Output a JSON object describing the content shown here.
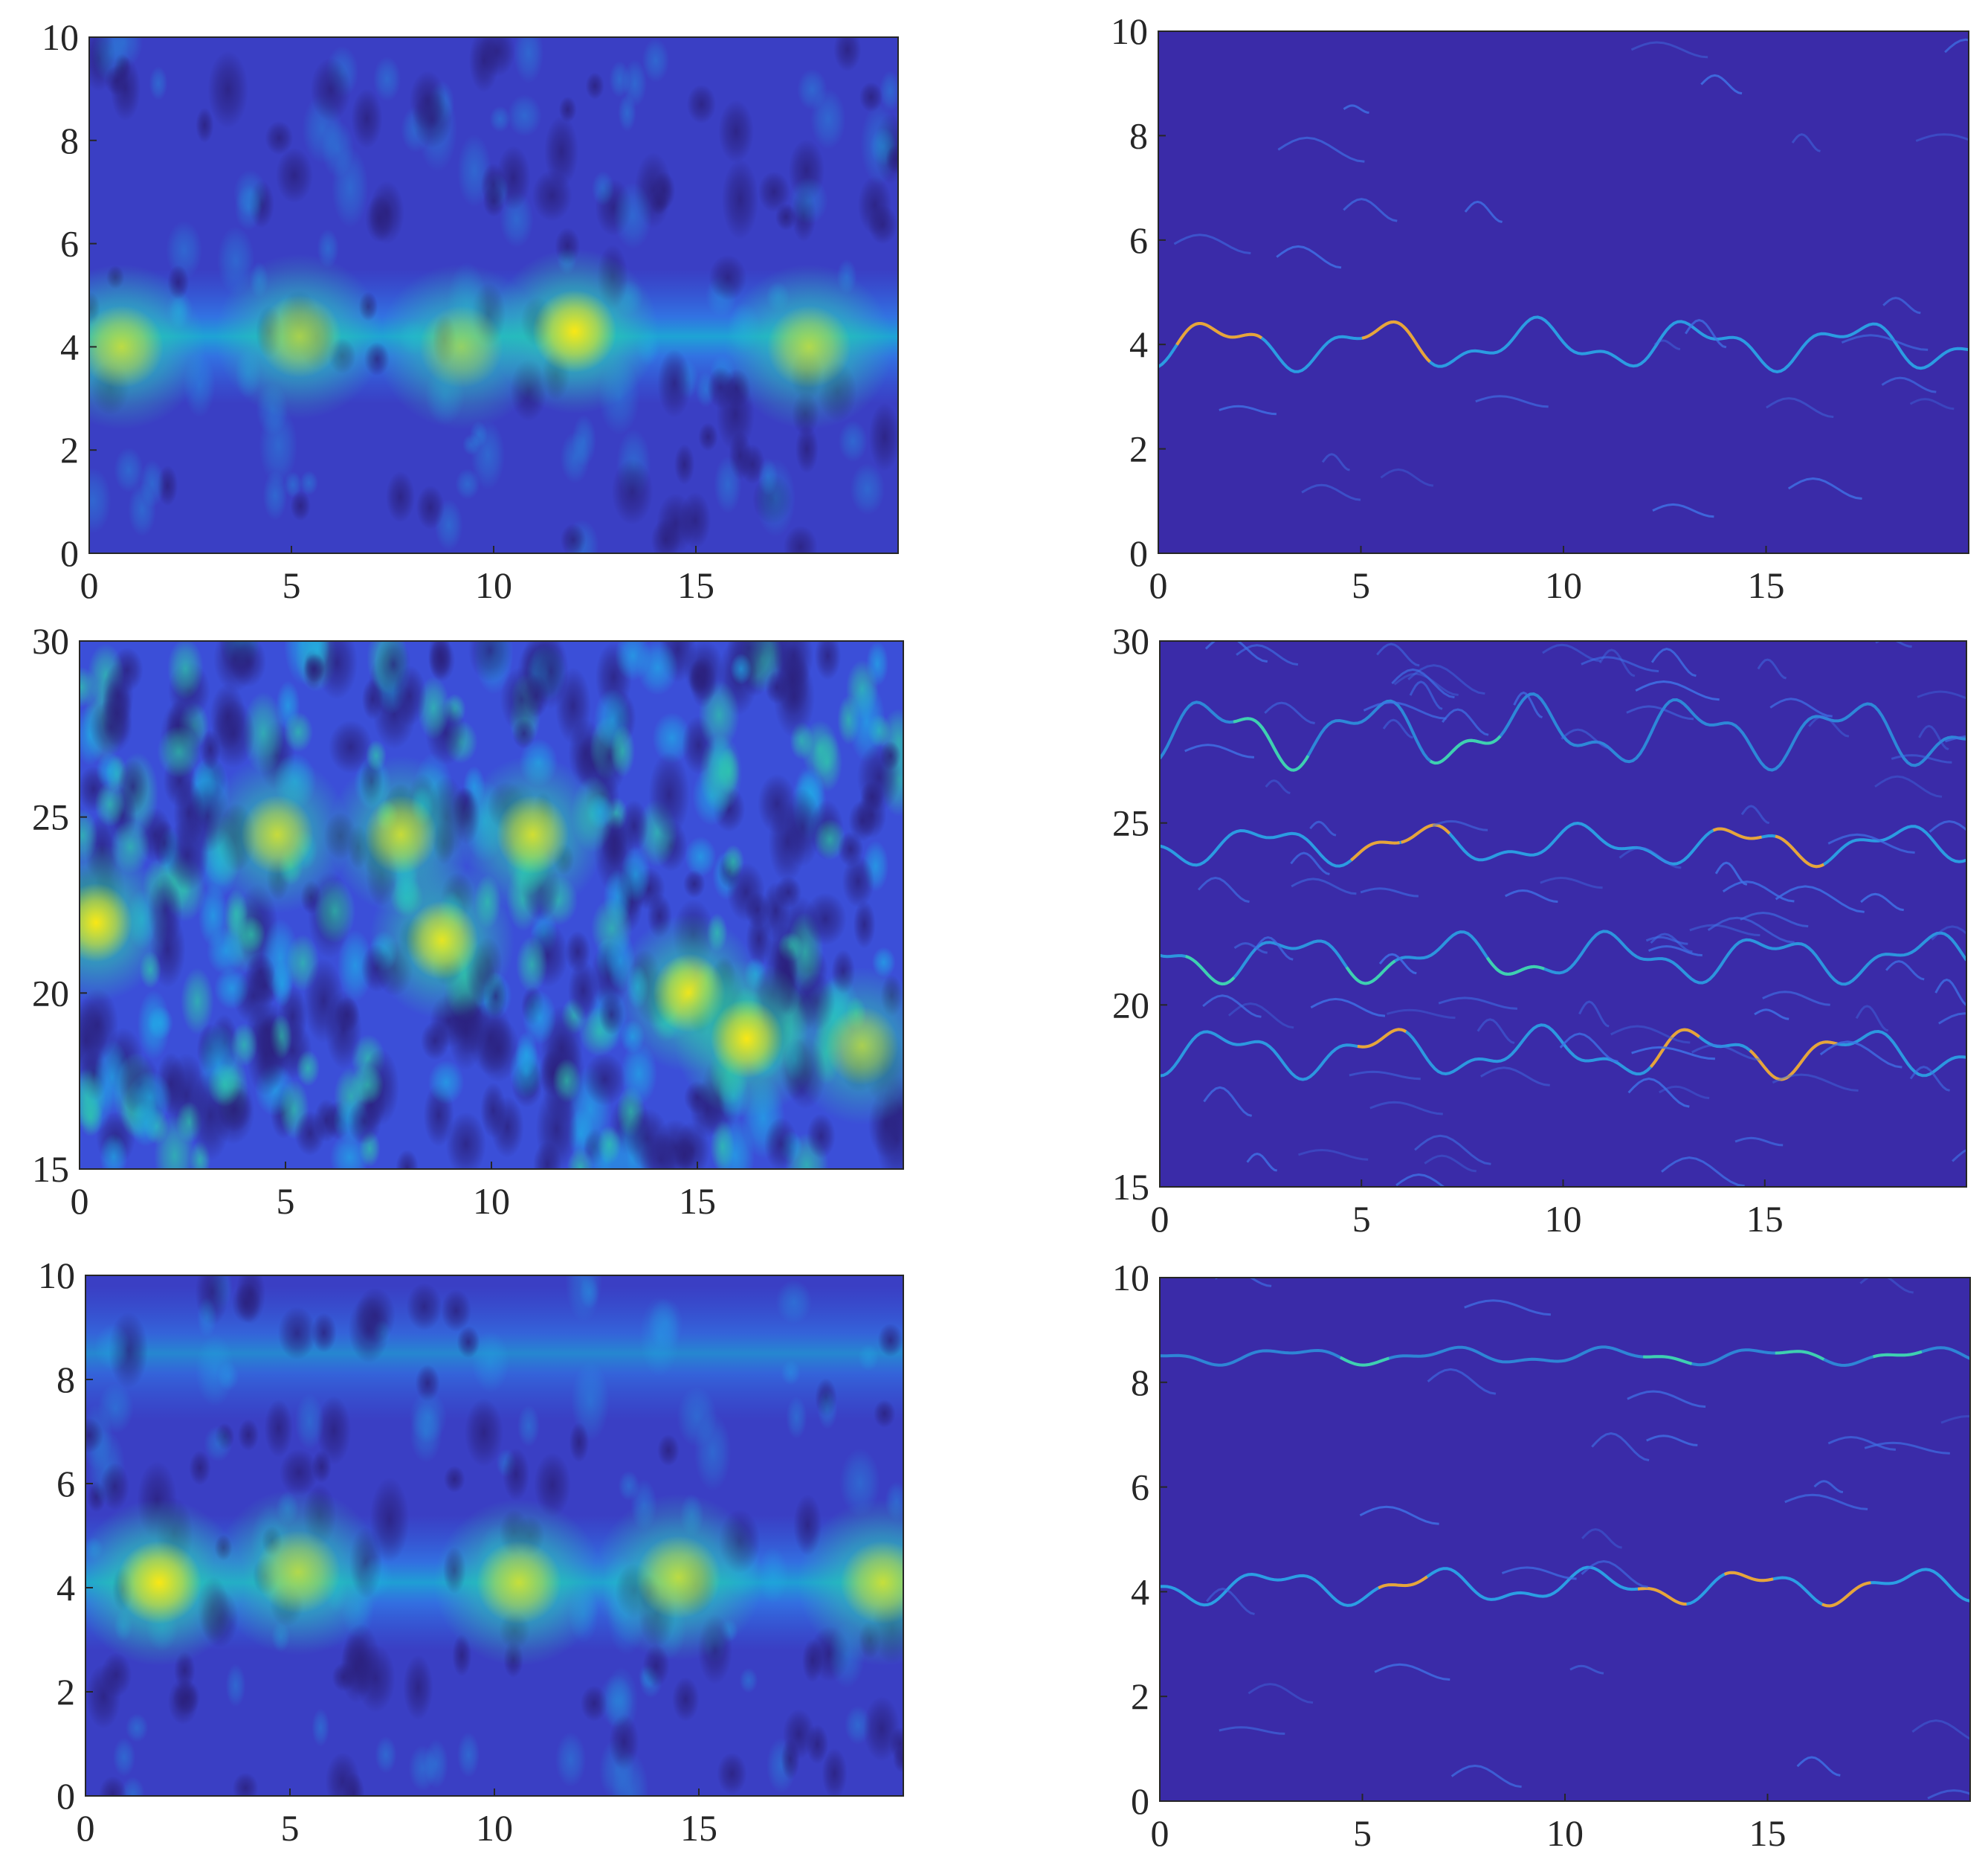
{
  "chart_data": [
    {
      "id": "top-left",
      "type": "heatmap",
      "title": "",
      "xlabel": "",
      "ylabel": "",
      "xlim": [
        0,
        20
      ],
      "ylim": [
        0,
        10
      ],
      "xticks": [
        "0",
        "5",
        "10",
        "15"
      ],
      "yticks": [
        "0",
        "2",
        "4",
        "6",
        "8",
        "10"
      ],
      "colormap": [
        "#352a87",
        "#3c4bd6",
        "#2e86f0",
        "#13b1d6",
        "#32c7a1",
        "#a7c753",
        "#f6c035",
        "#f9e715"
      ],
      "bands": [
        {
          "y": 4.2,
          "intensity": 0.55
        }
      ],
      "hotspots": [
        {
          "x": 0.8,
          "y": 4.0,
          "intensity": 0.7
        },
        {
          "x": 5.2,
          "y": 4.2,
          "intensity": 0.6
        },
        {
          "x": 9.2,
          "y": 4.0,
          "intensity": 0.5
        },
        {
          "x": 12.0,
          "y": 4.3,
          "intensity": 1.0
        },
        {
          "x": 17.8,
          "y": 4.0,
          "intensity": 0.65
        }
      ]
    },
    {
      "id": "top-right",
      "type": "heatmap",
      "title": "",
      "xlabel": "",
      "ylabel": "",
      "xlim": [
        0,
        20
      ],
      "ylim": [
        0,
        10
      ],
      "xticks": [
        "0",
        "5",
        "10",
        "15"
      ],
      "yticks": [
        "0",
        "2",
        "4",
        "6",
        "8",
        "10"
      ],
      "ridges": [
        {
          "y": 4.0,
          "amplitude": 0.35,
          "intensity": 0.8
        }
      ]
    },
    {
      "id": "middle-left",
      "type": "heatmap",
      "title": "",
      "xlabel": "",
      "ylabel": "",
      "xlim": [
        0,
        20
      ],
      "ylim": [
        15,
        30
      ],
      "xticks": [
        "0",
        "5",
        "10",
        "15"
      ],
      "yticks": [
        "15",
        "20",
        "25",
        "30"
      ],
      "hotspots": [
        {
          "x": 0.4,
          "y": 22.0,
          "intensity": 1.0
        },
        {
          "x": 4.8,
          "y": 24.5,
          "intensity": 0.75
        },
        {
          "x": 7.8,
          "y": 24.5,
          "intensity": 0.75
        },
        {
          "x": 8.8,
          "y": 21.5,
          "intensity": 0.9
        },
        {
          "x": 11.0,
          "y": 24.5,
          "intensity": 0.8
        },
        {
          "x": 14.8,
          "y": 20.0,
          "intensity": 0.95
        },
        {
          "x": 16.2,
          "y": 18.7,
          "intensity": 1.0
        },
        {
          "x": 19.0,
          "y": 18.5,
          "intensity": 0.6
        }
      ]
    },
    {
      "id": "middle-right",
      "type": "heatmap",
      "title": "",
      "xlabel": "",
      "ylabel": "",
      "xlim": [
        0,
        20
      ],
      "ylim": [
        15,
        30
      ],
      "xticks": [
        "0",
        "5",
        "10",
        "15"
      ],
      "yticks": [
        "15",
        "20",
        "25",
        "30"
      ],
      "ridges": [
        {
          "y": 18.7,
          "amplitude": 0.5,
          "intensity": 0.75
        },
        {
          "y": 21.3,
          "amplitude": 0.5,
          "intensity": 0.7
        },
        {
          "y": 24.4,
          "amplitude": 0.4,
          "intensity": 0.8
        },
        {
          "y": 27.5,
          "amplitude": 0.7,
          "intensity": 0.5
        }
      ]
    },
    {
      "id": "bottom-left",
      "type": "heatmap",
      "title": "",
      "xlabel": "",
      "ylabel": "",
      "xlim": [
        0,
        20
      ],
      "ylim": [
        0,
        10
      ],
      "xticks": [
        "0",
        "5",
        "10",
        "15"
      ],
      "yticks": [
        "0",
        "2",
        "4",
        "6",
        "8",
        "10"
      ],
      "bands": [
        {
          "y": 4.1,
          "intensity": 0.5
        },
        {
          "y": 8.5,
          "intensity": 0.25
        }
      ],
      "hotspots": [
        {
          "x": 1.8,
          "y": 4.1,
          "intensity": 1.0
        },
        {
          "x": 5.2,
          "y": 4.3,
          "intensity": 0.65
        },
        {
          "x": 10.6,
          "y": 4.1,
          "intensity": 0.75
        },
        {
          "x": 14.5,
          "y": 4.2,
          "intensity": 0.7
        },
        {
          "x": 19.5,
          "y": 4.1,
          "intensity": 0.75
        }
      ]
    },
    {
      "id": "bottom-right",
      "type": "heatmap",
      "title": "",
      "xlabel": "",
      "ylabel": "",
      "xlim": [
        0,
        20
      ],
      "ylim": [
        0,
        10
      ],
      "xticks": [
        "0",
        "5",
        "10",
        "15"
      ],
      "yticks": [
        "0",
        "2",
        "4",
        "6",
        "8",
        "10"
      ],
      "ridges": [
        {
          "y": 4.1,
          "amplitude": 0.25,
          "intensity": 0.85
        },
        {
          "y": 8.5,
          "amplitude": 0.12,
          "intensity": 0.45
        }
      ]
    }
  ]
}
